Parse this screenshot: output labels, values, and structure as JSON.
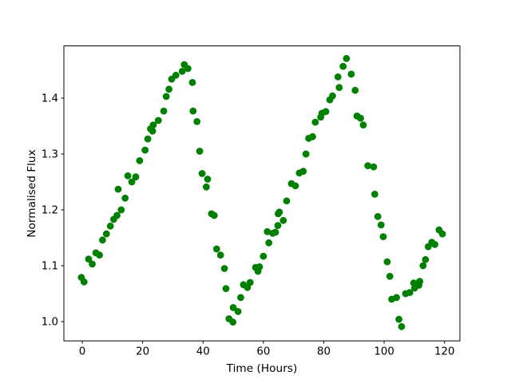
{
  "figure": {
    "background": "#ffffff",
    "border_color": "#000000"
  },
  "chart_data": {
    "type": "scatter",
    "title": "",
    "xlabel": "Time (Hours)",
    "ylabel": "Normalised Flux",
    "x_ticks": [
      "0",
      "20",
      "40",
      "60",
      "80",
      "100",
      "120"
    ],
    "y_ticks": [
      "1.0",
      "1.1",
      "1.2",
      "1.3",
      "1.4"
    ],
    "xlim": [
      -6.1,
      125.1
    ],
    "ylim": [
      0.9655,
      1.4935
    ],
    "grid": false,
    "legend": null,
    "marker": {
      "shape": "circle",
      "color": "#008000",
      "radius_px": 4.4
    },
    "axis_color": "#000000",
    "points": [
      [
        -0.3,
        1.079
      ],
      [
        0.6,
        1.071
      ],
      [
        2.1,
        1.112
      ],
      [
        3.3,
        1.103
      ],
      [
        4.5,
        1.123
      ],
      [
        5.7,
        1.119
      ],
      [
        6.7,
        1.146
      ],
      [
        8.0,
        1.157
      ],
      [
        9.3,
        1.171
      ],
      [
        10.4,
        1.183
      ],
      [
        11.5,
        1.19
      ],
      [
        11.9,
        1.237
      ],
      [
        12.9,
        1.2
      ],
      [
        14.2,
        1.221
      ],
      [
        15.1,
        1.261
      ],
      [
        16.4,
        1.25
      ],
      [
        17.7,
        1.259
      ],
      [
        19.0,
        1.288
      ],
      [
        20.8,
        1.307
      ],
      [
        21.7,
        1.327
      ],
      [
        22.6,
        1.345
      ],
      [
        23.3,
        1.341
      ],
      [
        23.5,
        1.352
      ],
      [
        25.2,
        1.36
      ],
      [
        27.0,
        1.377
      ],
      [
        27.8,
        1.403
      ],
      [
        28.7,
        1.416
      ],
      [
        29.6,
        1.434
      ],
      [
        31.0,
        1.441
      ],
      [
        33.1,
        1.448
      ],
      [
        33.8,
        1.46
      ],
      [
        35.0,
        1.453
      ],
      [
        36.5,
        1.428
      ],
      [
        36.7,
        1.377
      ],
      [
        38.0,
        1.358
      ],
      [
        38.9,
        1.305
      ],
      [
        39.7,
        1.265
      ],
      [
        41.1,
        1.241
      ],
      [
        41.5,
        1.255
      ],
      [
        42.8,
        1.193
      ],
      [
        43.7,
        1.19
      ],
      [
        44.5,
        1.13
      ],
      [
        45.8,
        1.119
      ],
      [
        47.1,
        1.095
      ],
      [
        47.6,
        1.059
      ],
      [
        48.6,
        1.005
      ],
      [
        49.9,
        0.999
      ],
      [
        50.0,
        1.025
      ],
      [
        51.6,
        1.018
      ],
      [
        52.5,
        1.043
      ],
      [
        53.4,
        1.066
      ],
      [
        54.7,
        1.061
      ],
      [
        55.6,
        1.07
      ],
      [
        57.4,
        1.097
      ],
      [
        58.2,
        1.09
      ],
      [
        58.7,
        1.098
      ],
      [
        60.0,
        1.117
      ],
      [
        61.3,
        1.161
      ],
      [
        61.8,
        1.141
      ],
      [
        63.1,
        1.158
      ],
      [
        64.0,
        1.16
      ],
      [
        64.8,
        1.172
      ],
      [
        64.9,
        1.193
      ],
      [
        65.3,
        1.196
      ],
      [
        66.6,
        1.181
      ],
      [
        67.7,
        1.216
      ],
      [
        69.3,
        1.247
      ],
      [
        70.6,
        1.243
      ],
      [
        71.9,
        1.266
      ],
      [
        73.2,
        1.269
      ],
      [
        74.1,
        1.3
      ],
      [
        75.0,
        1.328
      ],
      [
        76.3,
        1.331
      ],
      [
        77.2,
        1.357
      ],
      [
        79.0,
        1.366
      ],
      [
        79.4,
        1.373
      ],
      [
        80.7,
        1.376
      ],
      [
        82.0,
        1.397
      ],
      [
        82.9,
        1.404
      ],
      [
        84.7,
        1.438
      ],
      [
        85.1,
        1.419
      ],
      [
        86.4,
        1.457
      ],
      [
        87.5,
        1.471
      ],
      [
        89.1,
        1.443
      ],
      [
        90.4,
        1.414
      ],
      [
        91.0,
        1.368
      ],
      [
        92.2,
        1.364
      ],
      [
        93.1,
        1.352
      ],
      [
        94.6,
        1.279
      ],
      [
        96.5,
        1.277
      ],
      [
        96.9,
        1.228
      ],
      [
        97.9,
        1.188
      ],
      [
        99.0,
        1.173
      ],
      [
        99.7,
        1.152
      ],
      [
        101.0,
        1.107
      ],
      [
        101.9,
        1.081
      ],
      [
        102.5,
        1.04
      ],
      [
        104.1,
        1.043
      ],
      [
        104.9,
        1.004
      ],
      [
        105.8,
        0.991
      ],
      [
        107.1,
        1.05
      ],
      [
        108.5,
        1.052
      ],
      [
        109.8,
        1.069
      ],
      [
        110.1,
        1.06
      ],
      [
        111.5,
        1.065
      ],
      [
        111.8,
        1.072
      ],
      [
        112.9,
        1.1
      ],
      [
        113.7,
        1.111
      ],
      [
        114.6,
        1.134
      ],
      [
        115.8,
        1.142
      ],
      [
        116.8,
        1.138
      ],
      [
        118.2,
        1.164
      ],
      [
        119.3,
        1.157
      ]
    ]
  }
}
